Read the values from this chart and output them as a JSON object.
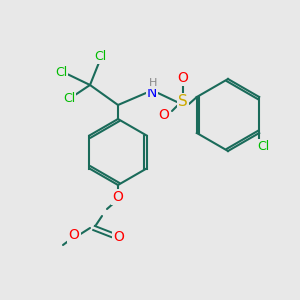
{
  "background_color": "#e8e8e8",
  "atom_colors": {
    "C": "#1a6b5a",
    "H": "#888888",
    "N": "#0000ff",
    "O": "#ff0000",
    "S": "#ccaa00",
    "Cl": "#00bb00"
  },
  "bond_color": "#1a6b5a",
  "figsize": [
    3.0,
    3.0
  ],
  "dpi": 100
}
